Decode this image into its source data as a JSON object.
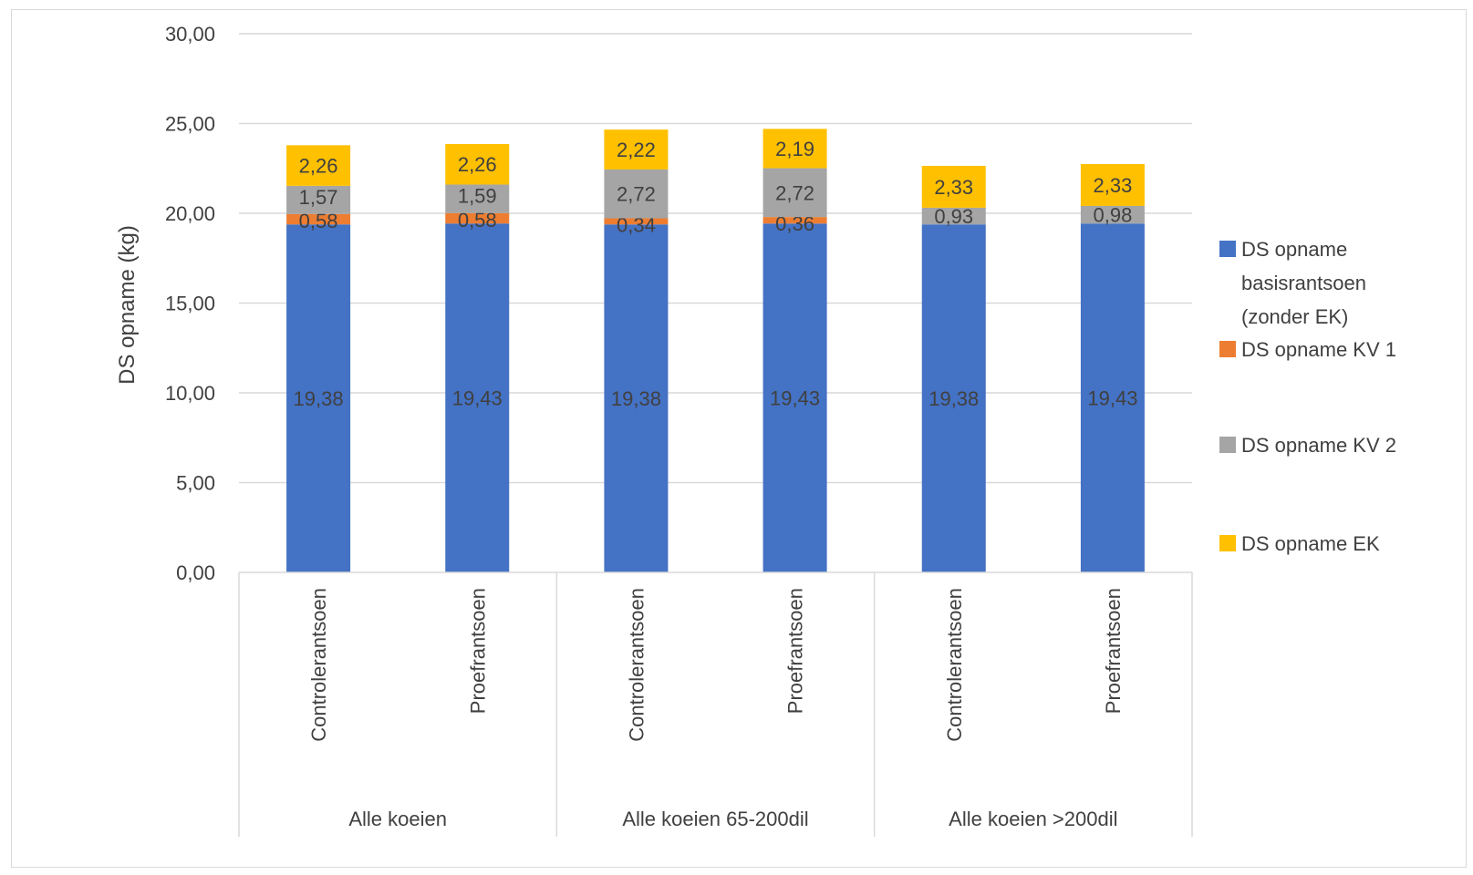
{
  "chart_data": {
    "type": "bar",
    "stacked": true,
    "ylabel": "DS opname (kg)",
    "ylim": [
      0,
      30
    ],
    "yticks": [
      "0,00",
      "5,00",
      "10,00",
      "15,00",
      "20,00",
      "25,00",
      "30,00"
    ],
    "grid": true,
    "legend_position": "right",
    "categories": [
      "Controlerantsoen",
      "Proefrantsoen",
      "Controlerantsoen",
      "Proefrantsoen",
      "Controlerantsoen",
      "Proefrantsoen"
    ],
    "groups": [
      {
        "label": "Alle koeien",
        "span": 2
      },
      {
        "label": "Alle koeien 65-200dil",
        "span": 2
      },
      {
        "label": "Alle koeien >200dil",
        "span": 2
      }
    ],
    "series": [
      {
        "name": "DS opname basisrantsoen (zonder EK)",
        "legend_lines": [
          "DS opname",
          "basisrantsoen",
          "(zonder EK)"
        ],
        "color": "#4472c4",
        "values": [
          19.38,
          19.43,
          19.38,
          19.43,
          19.38,
          19.43
        ],
        "labels": [
          "19,38",
          "19,43",
          "19,38",
          "19,43",
          "19,38",
          "19,43"
        ]
      },
      {
        "name": "DS opname KV 1",
        "legend_lines": [
          "DS opname KV 1"
        ],
        "color": "#ed7d31",
        "values": [
          0.58,
          0.58,
          0.34,
          0.36,
          0,
          0
        ],
        "labels": [
          "0,58",
          "0,58",
          "0,34",
          "0,36",
          "",
          ""
        ]
      },
      {
        "name": "DS opname KV 2",
        "legend_lines": [
          "DS opname KV 2"
        ],
        "color": "#a5a5a5",
        "values": [
          1.57,
          1.59,
          2.72,
          2.72,
          0.93,
          0.98
        ],
        "labels": [
          "1,57",
          "1,59",
          "2,72",
          "2,72",
          "0,93",
          "0,98"
        ]
      },
      {
        "name": "DS opname EK",
        "legend_lines": [
          "DS opname EK"
        ],
        "color": "#ffc000",
        "values": [
          2.26,
          2.26,
          2.22,
          2.19,
          2.33,
          2.33
        ],
        "labels": [
          "2,26",
          "2,26",
          "2,22",
          "2,19",
          "2,33",
          "2,33"
        ]
      }
    ]
  }
}
